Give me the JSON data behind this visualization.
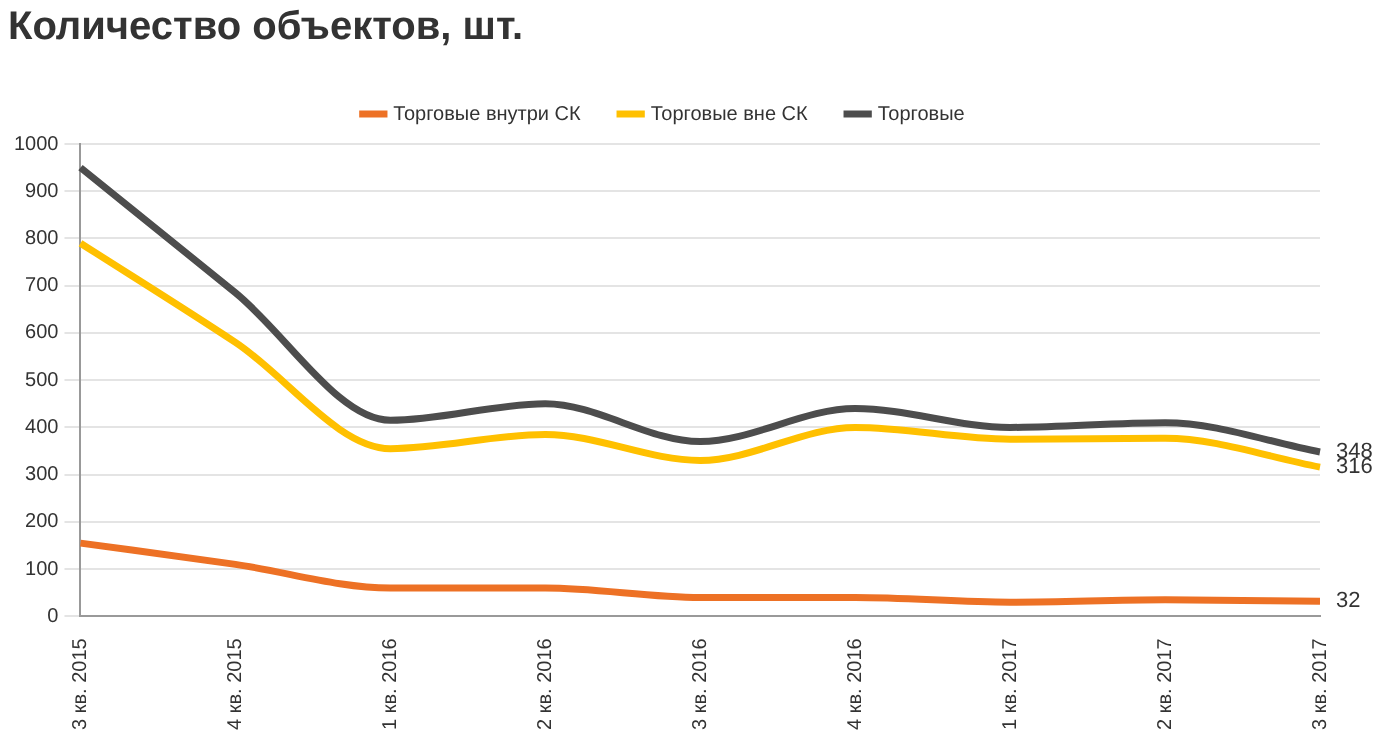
{
  "chart_data": {
    "type": "line",
    "title": "Количество объектов, шт.",
    "categories": [
      "3 кв. 2015",
      "4 кв. 2015",
      "1 кв. 2016",
      "2 кв. 2016",
      "3 кв. 2016",
      "4 кв. 2016",
      "1 кв. 2017",
      "2 кв. 2017",
      "3 кв. 2017"
    ],
    "series": [
      {
        "name": "Торговые внутри СК",
        "color": "#ed7125",
        "values": [
          155,
          110,
          60,
          60,
          40,
          40,
          30,
          35,
          32
        ],
        "value_labels": [
          null,
          null,
          null,
          null,
          null,
          null,
          null,
          null,
          "32"
        ]
      },
      {
        "name": "Торговые вне СК",
        "color": "#ffc000",
        "values": [
          790,
          580,
          355,
          385,
          330,
          400,
          375,
          377,
          316
        ],
        "value_labels": [
          null,
          null,
          null,
          null,
          null,
          null,
          null,
          null,
          "316"
        ]
      },
      {
        "name": "Торговые",
        "color": "#4d4d4d",
        "values": [
          950,
          685,
          415,
          450,
          370,
          440,
          400,
          410,
          348
        ],
        "value_labels": [
          null,
          null,
          null,
          null,
          null,
          null,
          null,
          null,
          "348"
        ]
      }
    ],
    "ylim": [
      0,
      1000
    ],
    "yticks": [
      0,
      100,
      200,
      300,
      400,
      500,
      600,
      700,
      800,
      900,
      1000
    ],
    "grid": "y",
    "legend": "top",
    "marker": "none",
    "line_style": "solid"
  }
}
